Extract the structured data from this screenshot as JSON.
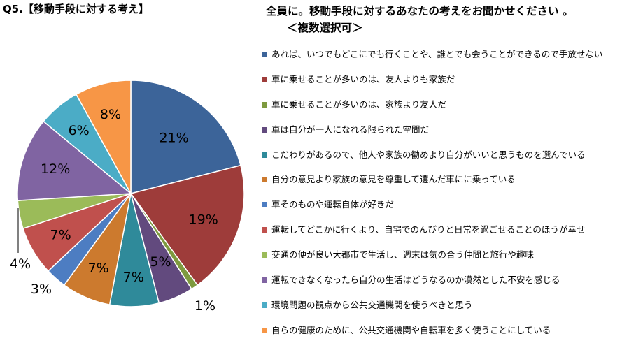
{
  "page_title": "Q5.【移動手段に対する考え】",
  "chart_data": {
    "type": "pie",
    "title_line1": "全員に。移動手段に対するあなたの考えをお聞かせください 。",
    "title_line2": "＜複数選択可＞",
    "legend_position": "right",
    "slices": [
      {
        "label": "あれば、いつでもどこにでも行くことや、誰とでも会うことができるので手放せない",
        "value": 21,
        "value_label": "21%",
        "color": "#3C6499"
      },
      {
        "label": "車に乗せることが多いのは、友人よりも家族だ",
        "value": 19,
        "value_label": "19%",
        "color": "#9E3C3A"
      },
      {
        "label": "車に乗せることが多いのは、家族より友人だ",
        "value": 1,
        "value_label": "1%",
        "color": "#7E9A3F"
      },
      {
        "label": "車は自分が一人になれる限られた空間だ",
        "value": 5,
        "value_label": "5%",
        "color": "#624A7E"
      },
      {
        "label": "こだわりがあるので、他人や家族の勧めより自分がいいと思うものを選んでいる",
        "value": 7,
        "value_label": "7%",
        "color": "#2F8A9A"
      },
      {
        "label": "自分の意見より家族の意見を尊重して選んだ車にに乗っている",
        "value": 7,
        "value_label": "7%",
        "color": "#CC7A2E"
      },
      {
        "label": "車そのものや運転自体が好きだ",
        "value": 3,
        "value_label": "3%",
        "color": "#4D7DC2"
      },
      {
        "label": "運転してどこかに行くより、自宅でのんびりと日常を過ごせることのほうが幸せ",
        "value": 7,
        "value_label": "7%",
        "color": "#C0504D"
      },
      {
        "label": "交通の便が良い大都市で生活し、週末は気の合う仲間と旅行や趣味",
        "value": 4,
        "value_label": "4%",
        "color": "#9BBB59"
      },
      {
        "label": "運転できなくなったら自分の生活はどうなるのか漠然とした不安を感じる",
        "value": 12,
        "value_label": "12%",
        "color": "#8064A2"
      },
      {
        "label": "環境問題の観点から公共交通機関を使うべきと思う",
        "value": 6,
        "value_label": "6%",
        "color": "#4BACC6"
      },
      {
        "label": "自らの健康のために、公共交通機関や自転車を多く使うことにしている",
        "value": 8,
        "value_label": "8%",
        "color": "#F79646"
      }
    ]
  }
}
